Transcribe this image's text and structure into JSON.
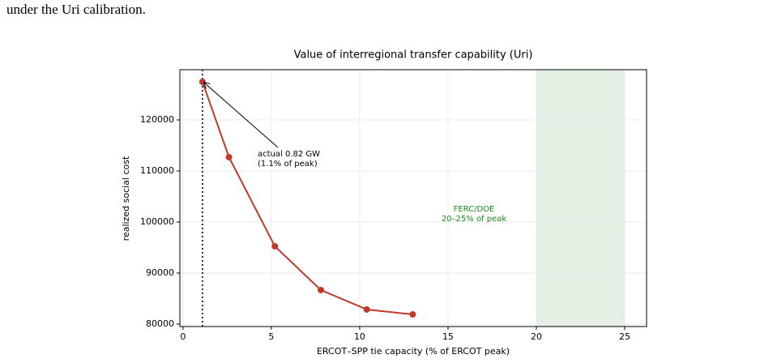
{
  "text": "under the Uri calibration.",
  "chart_data": {
    "type": "line",
    "title": "Value of interregional transfer capability (Uri)",
    "xlabel": "ERCOT–SPP tie capacity (% of ERCOT peak)",
    "ylabel": "realized social cost",
    "x": [
      1.1,
      2.6,
      5.2,
      7.8,
      10.4,
      13.0
    ],
    "series": [
      {
        "color": "#c0392b",
        "values": [
          127460,
          112700,
          95240,
          86670,
          82860,
          81900
        ]
      }
    ],
    "xlim": [
      -0.18,
      26.24
    ],
    "ylim": [
      79520,
      129840
    ],
    "xticks": [
      0,
      5,
      10,
      15,
      20,
      25
    ],
    "yticks": [
      80000,
      90000,
      100000,
      110000,
      120000
    ],
    "grid": true,
    "vline": 1.1,
    "span": [
      20,
      25
    ],
    "span_color": "#e3f0e3",
    "annotations": [
      {
        "lines": [
          "actual 0.82 GW",
          "(1.1% of peak)"
        ],
        "color": "#000000"
      },
      {
        "lines": [
          "FERC/DOE",
          "20–25% of peak"
        ],
        "color": "#1a8a1a"
      }
    ]
  }
}
